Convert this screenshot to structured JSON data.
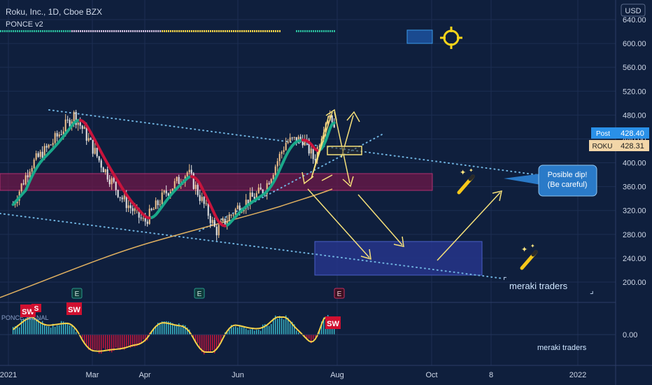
{
  "header": {
    "symbol_line": "Roku, Inc., 1D, Cboe BZX",
    "indicator_name": "PONCE v2"
  },
  "price_axis": {
    "currency": "USD",
    "ticks": [
      "640.00",
      "600.00",
      "560.00",
      "520.00",
      "480.00",
      "440.00",
      "400.00",
      "360.00",
      "320.00",
      "280.00",
      "240.00",
      "200.00"
    ]
  },
  "osc_axis": {
    "ticks": [
      "0.00"
    ]
  },
  "time_axis": {
    "ticks": [
      "2021",
      "Mar",
      "Apr",
      "Jun",
      "Aug",
      "Oct",
      "8",
      "2022"
    ]
  },
  "price_badges": {
    "post_label": "Post",
    "post_value": "428.40",
    "symbol_label": "ROKU",
    "symbol_value": "428.31"
  },
  "annotations": {
    "callout_line1": "Posible dip!",
    "callout_line2": "(Be careful)",
    "brand_main": "meraki traders",
    "brand_osc": "meraki traders",
    "sw_label": "SW",
    "s_label": "S",
    "osc_legend": "PONCE SIGNAL",
    "earnings_marker": "E"
  },
  "colors": {
    "background": "#0f1f3d",
    "bull_candle": "#f2c38b",
    "bear_candle": "#e8e8e8",
    "ma_bull": "#1aa88a",
    "ma_bear": "#c8143c",
    "ma200": "#e0b060",
    "arrows": "#f5e07a",
    "channel_dots": "#6fb3e0",
    "resistance_zone": "#7a1a4a",
    "target_zone": "#2a3a8a",
    "callout": "#2a7ac8"
  },
  "chart_data": {
    "type": "candlestick",
    "title": "Roku, Inc., 1D, Cboe BZX",
    "x_range": [
      "2021-01",
      "2022-01"
    ],
    "ylim": [
      180,
      650
    ],
    "yunit": "USD",
    "visible_last_price": 428.31,
    "post_market_price": 428.4,
    "price_path": [
      {
        "date": "2021-01-04",
        "close": 330
      },
      {
        "date": "2021-01-15",
        "close": 395
      },
      {
        "date": "2021-01-28",
        "close": 430
      },
      {
        "date": "2021-02-12",
        "close": 480
      },
      {
        "date": "2021-02-18",
        "close": 455
      },
      {
        "date": "2021-03-01",
        "close": 400
      },
      {
        "date": "2021-03-15",
        "close": 340
      },
      {
        "date": "2021-03-29",
        "close": 300
      },
      {
        "date": "2021-04-12",
        "close": 350
      },
      {
        "date": "2021-04-26",
        "close": 385
      },
      {
        "date": "2021-05-10",
        "close": 310
      },
      {
        "date": "2021-05-14",
        "close": 285
      },
      {
        "date": "2021-05-28",
        "close": 325
      },
      {
        "date": "2021-06-14",
        "close": 355
      },
      {
        "date": "2021-06-28",
        "close": 435
      },
      {
        "date": "2021-07-09",
        "close": 440
      },
      {
        "date": "2021-07-16",
        "close": 405
      },
      {
        "date": "2021-07-23",
        "close": 470
      },
      {
        "date": "2021-07-27",
        "close": 485
      },
      {
        "date": "2021-07-30",
        "close": 428.31
      }
    ],
    "earnings_dates": [
      "2021-02-18",
      "2021-04-22",
      "2021-07-22"
    ],
    "zones": [
      {
        "name": "resistance",
        "from": 355,
        "to": 383
      },
      {
        "name": "target",
        "from": 210,
        "to": 270
      }
    ]
  }
}
